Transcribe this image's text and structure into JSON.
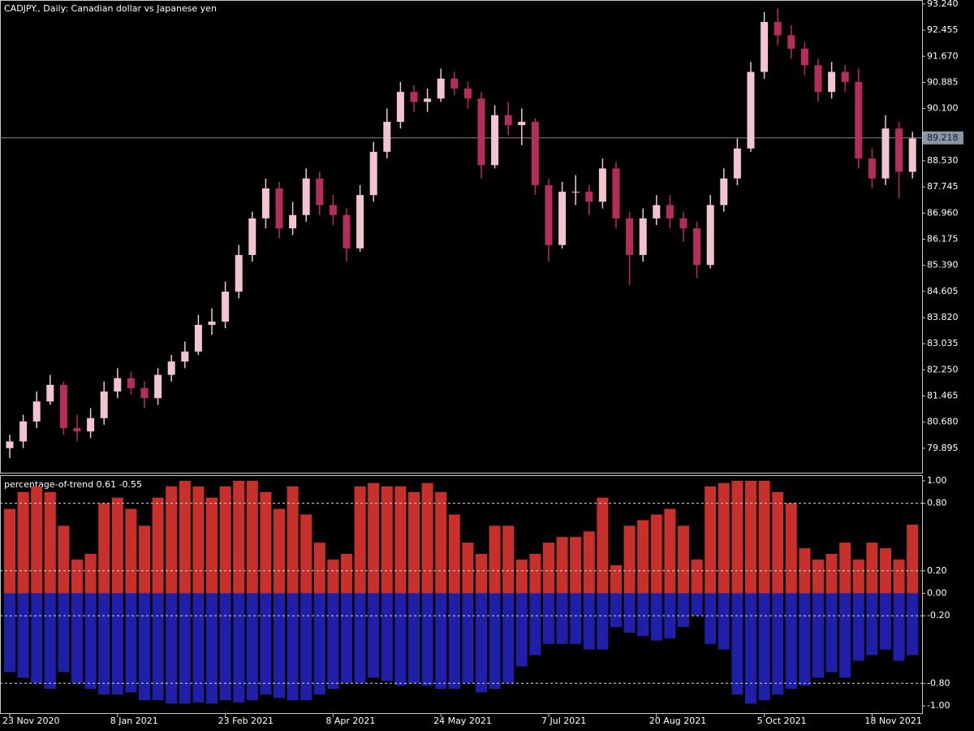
{
  "chart_data": [
    {
      "type": "candlestick",
      "title": "CADJPY., Daily:  Canadian dollar vs Japanese yen",
      "up_color": "#f2c4cf",
      "down_color": "#b52d5c",
      "last_price": 89.218,
      "ylim": [
        79.16,
        93.36
      ],
      "yticks": [
        {
          "value": 93.24,
          "label": "93.240"
        },
        92.455,
        {
          "value": 91.67,
          "label": "91.670"
        },
        90.885,
        {
          "value": 90.1,
          "label": "90.100"
        },
        {
          "value": 88.53,
          "label": "88.530"
        },
        87.745,
        {
          "value": 86.96,
          "label": "86.960"
        },
        86.175,
        {
          "value": 85.39,
          "label": "85.390"
        },
        84.605,
        {
          "value": 83.82,
          "label": "83.820"
        },
        83.035,
        {
          "value": 82.25,
          "label": "82.250"
        },
        81.465,
        {
          "value": 80.68,
          "label": "80.680"
        },
        79.895
      ],
      "categories": [
        "23 Nov 2020",
        null,
        null,
        null,
        null,
        null,
        null,
        null,
        "8 Jan 2021",
        null,
        null,
        null,
        null,
        null,
        null,
        null,
        "23 Feb 2021",
        null,
        null,
        null,
        null,
        null,
        null,
        null,
        "8 Apr 2021",
        null,
        null,
        null,
        null,
        null,
        null,
        null,
        "24 May 2021",
        null,
        null,
        null,
        null,
        null,
        null,
        null,
        "7 Jul 2021",
        null,
        null,
        null,
        null,
        null,
        null,
        null,
        "20 Aug 2021",
        null,
        null,
        null,
        null,
        null,
        null,
        null,
        "5 Oct 2021",
        null,
        null,
        null,
        null,
        null,
        null,
        null,
        "18 Nov 2021",
        null,
        null,
        null
      ],
      "ohlc": [
        [
          79.9,
          80.3,
          79.6,
          80.1
        ],
        [
          80.1,
          80.9,
          79.9,
          80.7
        ],
        [
          80.7,
          81.6,
          80.5,
          81.3
        ],
        [
          81.3,
          82.1,
          81.2,
          81.8
        ],
        [
          81.8,
          81.9,
          80.3,
          80.5
        ],
        [
          80.5,
          80.9,
          80.1,
          80.4
        ],
        [
          80.4,
          81.1,
          80.2,
          80.8
        ],
        [
          80.8,
          81.9,
          80.6,
          81.6
        ],
        [
          81.6,
          82.3,
          81.4,
          82.0
        ],
        [
          82.0,
          82.2,
          81.5,
          81.7
        ],
        [
          81.7,
          81.9,
          81.1,
          81.4
        ],
        [
          81.4,
          82.3,
          81.2,
          82.1
        ],
        [
          82.1,
          82.7,
          81.9,
          82.5
        ],
        [
          82.5,
          83.1,
          82.3,
          82.8
        ],
        [
          82.8,
          83.9,
          82.7,
          83.6
        ],
        [
          83.6,
          84.1,
          83.3,
          83.7
        ],
        [
          83.7,
          84.9,
          83.5,
          84.6
        ],
        [
          84.6,
          86.0,
          84.4,
          85.7
        ],
        [
          85.7,
          87.0,
          85.5,
          86.8
        ],
        [
          86.8,
          88.0,
          86.5,
          87.7
        ],
        [
          87.7,
          87.9,
          86.2,
          86.5
        ],
        [
          86.5,
          87.3,
          86.3,
          86.9
        ],
        [
          86.9,
          88.3,
          86.7,
          88.0
        ],
        [
          88.0,
          88.2,
          86.9,
          87.2
        ],
        [
          87.2,
          87.5,
          86.6,
          86.9
        ],
        [
          86.9,
          87.1,
          85.5,
          85.9
        ],
        [
          85.9,
          87.8,
          85.8,
          87.5
        ],
        [
          87.5,
          89.1,
          87.3,
          88.8
        ],
        [
          88.8,
          90.1,
          88.6,
          89.7
        ],
        [
          89.7,
          90.9,
          89.5,
          90.6
        ],
        [
          90.6,
          90.8,
          90.0,
          90.3
        ],
        [
          90.3,
          90.7,
          90.0,
          90.4
        ],
        [
          90.4,
          91.3,
          90.3,
          91.0
        ],
        [
          91.0,
          91.2,
          90.5,
          90.7
        ],
        [
          90.7,
          90.9,
          90.1,
          90.4
        ],
        [
          90.4,
          90.6,
          88.0,
          88.4
        ],
        [
          88.4,
          90.2,
          88.3,
          89.9
        ],
        [
          89.9,
          90.3,
          89.3,
          89.6
        ],
        [
          89.6,
          90.1,
          89.0,
          89.7
        ],
        [
          89.7,
          89.8,
          87.5,
          87.8
        ],
        [
          87.8,
          88.0,
          85.5,
          86.0
        ],
        [
          86.0,
          87.9,
          85.9,
          87.6
        ],
        [
          87.6,
          88.1,
          87.2,
          87.6
        ],
        [
          87.6,
          87.8,
          86.9,
          87.3
        ],
        [
          87.3,
          88.6,
          87.1,
          88.3
        ],
        [
          88.3,
          88.5,
          86.5,
          86.8
        ],
        [
          86.8,
          87.0,
          84.8,
          85.7
        ],
        [
          85.7,
          87.1,
          85.5,
          86.8
        ],
        [
          86.8,
          87.5,
          86.6,
          87.2
        ],
        [
          87.2,
          87.5,
          86.5,
          86.8
        ],
        [
          86.8,
          87.0,
          86.1,
          86.5
        ],
        [
          86.5,
          86.7,
          85.0,
          85.4
        ],
        [
          85.4,
          87.5,
          85.3,
          87.2
        ],
        [
          87.2,
          88.3,
          87.0,
          88.0
        ],
        [
          88.0,
          89.2,
          87.8,
          88.9
        ],
        [
          88.9,
          91.5,
          88.8,
          91.2
        ],
        [
          91.2,
          93.0,
          91.0,
          92.7
        ],
        [
          92.7,
          93.1,
          92.0,
          92.3
        ],
        [
          92.3,
          92.6,
          91.6,
          91.9
        ],
        [
          91.9,
          92.1,
          91.1,
          91.4
        ],
        [
          91.4,
          91.6,
          90.3,
          90.6
        ],
        [
          90.6,
          91.5,
          90.4,
          91.2
        ],
        [
          91.2,
          91.4,
          90.6,
          90.9
        ],
        [
          90.9,
          91.3,
          88.3,
          88.6
        ],
        [
          88.6,
          88.9,
          87.7,
          88.0
        ],
        [
          88.0,
          89.9,
          87.8,
          89.5
        ],
        [
          89.5,
          89.7,
          87.4,
          88.2
        ],
        [
          88.2,
          89.4,
          88.0,
          89.2
        ]
      ]
    },
    {
      "type": "bar",
      "title": "percentage-of-trend 0.61 -0.55",
      "ylim": [
        -1.065,
        1.05
      ],
      "yticks": [
        {
          "value": 1,
          "label": "1.00"
        },
        {
          "value": 0.8,
          "label": "0.80"
        },
        {
          "value": 0.2,
          "label": "0.20"
        },
        {
          "value": 0,
          "label": "0.00"
        },
        {
          "value": -0.2,
          "label": "-0.20"
        },
        {
          "value": -0.8,
          "label": "-0.80"
        },
        {
          "value": -1,
          "label": "-1.00"
        }
      ],
      "levels": [
        0.8,
        0.2,
        -0.2,
        -0.8
      ],
      "series": [
        {
          "color": "#c8312b",
          "values": [
            0.75,
            0.9,
            0.95,
            0.9,
            0.6,
            0.3,
            0.35,
            0.8,
            0.85,
            0.75,
            0.6,
            0.85,
            0.95,
            1.0,
            0.95,
            0.85,
            0.95,
            1.0,
            1.0,
            0.9,
            0.75,
            0.95,
            0.7,
            0.45,
            0.3,
            0.35,
            0.95,
            0.98,
            0.95,
            0.95,
            0.9,
            0.98,
            0.9,
            0.7,
            0.45,
            0.35,
            0.6,
            0.6,
            0.3,
            0.35,
            0.45,
            0.5,
            0.5,
            0.55,
            0.85,
            0.25,
            0.6,
            0.65,
            0.7,
            0.75,
            0.6,
            0.3,
            0.95,
            0.98,
            1.0,
            1.0,
            1.0,
            0.9,
            0.8,
            0.4,
            0.3,
            0.35,
            0.45,
            0.3,
            0.45,
            0.4,
            0.3,
            0.61
          ]
        },
        {
          "color": "#1f1fa8",
          "values": [
            -0.7,
            -0.75,
            -0.8,
            -0.85,
            -0.7,
            -0.8,
            -0.85,
            -0.9,
            -0.9,
            -0.88,
            -0.95,
            -0.95,
            -0.98,
            -0.98,
            -0.97,
            -0.98,
            -0.95,
            -0.97,
            -0.95,
            -0.9,
            -0.93,
            -0.95,
            -0.95,
            -0.9,
            -0.85,
            -0.8,
            -0.8,
            -0.75,
            -0.78,
            -0.82,
            -0.8,
            -0.82,
            -0.85,
            -0.85,
            -0.8,
            -0.88,
            -0.85,
            -0.8,
            -0.65,
            -0.55,
            -0.45,
            -0.45,
            -0.45,
            -0.5,
            -0.5,
            -0.3,
            -0.35,
            -0.38,
            -0.42,
            -0.4,
            -0.3,
            -0.2,
            -0.45,
            -0.5,
            -0.9,
            -0.98,
            -0.95,
            -0.9,
            -0.85,
            -0.82,
            -0.75,
            -0.7,
            -0.75,
            -0.6,
            -0.55,
            -0.5,
            -0.6,
            -0.55
          ]
        }
      ]
    }
  ]
}
